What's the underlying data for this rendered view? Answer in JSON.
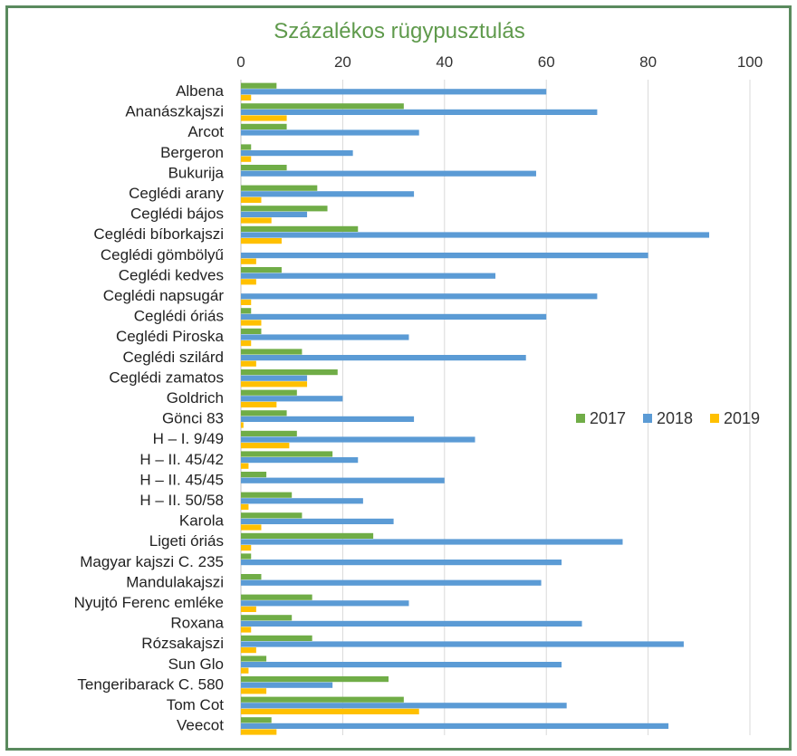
{
  "chart_data": {
    "type": "bar",
    "orientation": "horizontal",
    "title": "Százalékos rügypusztulás",
    "xlabel": "",
    "ylabel": "",
    "xlim": [
      0,
      100
    ],
    "x_ticks": [
      "0",
      "20",
      "40",
      "60",
      "80",
      "100"
    ],
    "x_axis_position": "top",
    "grid": true,
    "legend_position": "right",
    "categories": [
      "Albena",
      "Ananászkajszi",
      "Arcot",
      "Bergeron",
      "Bukurija",
      "Ceglédi arany",
      "Ceglédi bájos",
      "Ceglédi bíborkajszi",
      "Ceglédi gömbölyű",
      "Ceglédi kedves",
      "Ceglédi napsugár",
      "Ceglédi óriás",
      "Ceglédi Piroska",
      "Ceglédi szilárd",
      "Ceglédi zamatos",
      "Goldrich",
      "Gönci 83",
      "H – I. 9/49",
      "H – II. 45/42",
      "H – II. 45/45",
      "H – II. 50/58",
      "Karola",
      "Ligeti óriás",
      "Magyar kajszi C. 235",
      "Mandulakajszi",
      "Nyujtó Ferenc emléke",
      "Roxana",
      "Rózsakajszi",
      "Sun Glo",
      "Tengeribarack C. 580",
      "Tom Cot",
      "Veecot"
    ],
    "series": [
      {
        "name": "2017",
        "color": "#70ad47",
        "values": [
          7,
          32,
          9,
          2,
          9,
          15,
          17,
          23,
          0,
          8,
          0,
          2,
          4,
          12,
          19,
          11,
          9,
          11,
          18,
          5,
          10,
          12,
          26,
          2,
          4,
          14,
          10,
          14,
          5,
          29,
          32,
          6
        ]
      },
      {
        "name": "2018",
        "color": "#5b9bd5",
        "values": [
          60,
          70,
          35,
          22,
          58,
          34,
          13,
          92,
          80,
          50,
          70,
          60,
          33,
          56,
          13,
          20,
          34,
          46,
          23,
          40,
          24,
          30,
          75,
          63,
          59,
          33,
          67,
          87,
          63,
          18,
          64,
          84
        ]
      },
      {
        "name": "2019",
        "color": "#ffc000",
        "values": [
          2,
          9,
          0,
          2,
          0,
          4,
          6,
          8,
          3,
          3,
          2,
          4,
          2,
          3,
          13,
          7,
          0.5,
          9.5,
          1.5,
          0,
          1.5,
          4,
          2,
          0,
          0,
          3,
          2,
          3,
          1.5,
          5,
          35,
          7
        ]
      }
    ]
  }
}
